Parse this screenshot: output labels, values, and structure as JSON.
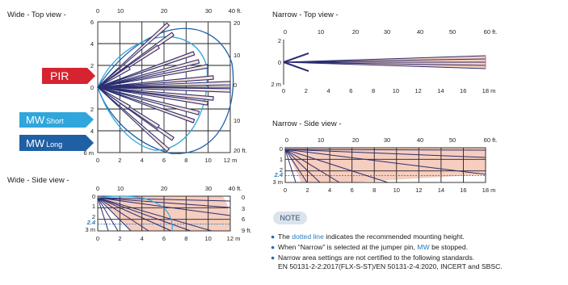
{
  "titles": {
    "wide_top": "Wide - Top view -",
    "wide_side": "Wide - Side view -",
    "narrow_top": "Narrow - Top view -",
    "narrow_side": "Narrow - Side view -"
  },
  "labels": {
    "pir": "PIR",
    "mw_short_prefix": "MW",
    "mw_short_suffix": "Short",
    "mw_long_prefix": "MW",
    "mw_long_suffix": "Long"
  },
  "colors": {
    "pir_red": "#d62330",
    "mw_short_blue": "#2fa6dc",
    "mw_long_blue": "#1f5fa5",
    "beam_navy": "#2b2e70",
    "beam_fill": "#f6cdbe",
    "dotted_blue": "#2a7bc0"
  },
  "wide_top": {
    "ft_ticks": [
      "0",
      "10",
      "20",
      "30",
      "40 ft."
    ],
    "left_ticks": [
      "6",
      "4",
      "2",
      "0",
      "2",
      "4",
      "6 m"
    ],
    "right_ticks": [
      "20",
      "10",
      "0",
      "10",
      "20 ft."
    ],
    "m_ticks": [
      "0",
      "2",
      "4",
      "6",
      "8",
      "10",
      "12 m"
    ]
  },
  "wide_side": {
    "ft_ticks": [
      "0",
      "10",
      "20",
      "30",
      "40 ft."
    ],
    "left_ticks": [
      "0",
      "1",
      "2",
      "2.4",
      "3 m"
    ],
    "right_ticks": [
      "0",
      "3",
      "6",
      "9 ft."
    ],
    "m_ticks": [
      "0",
      "2",
      "4",
      "6",
      "8",
      "10",
      "12 m"
    ]
  },
  "narrow_top": {
    "ft_ticks": [
      "0",
      "10",
      "20",
      "30",
      "40",
      "50",
      "60 ft."
    ],
    "left_ticks": [
      "2",
      "0",
      "2 m"
    ],
    "m_ticks": [
      "0",
      "2",
      "4",
      "6",
      "8",
      "10",
      "12",
      "14",
      "16",
      "18 m"
    ]
  },
  "narrow_side": {
    "ft_ticks": [
      "0",
      "10",
      "20",
      "30",
      "40",
      "50",
      "60 ft."
    ],
    "left_ticks": [
      "0",
      "1",
      "2",
      "2.4",
      "3 m"
    ],
    "m_ticks": [
      "0",
      "2",
      "4",
      "6",
      "8",
      "10",
      "12",
      "14",
      "16",
      "18 m"
    ]
  },
  "note": {
    "badge": "NOTE",
    "item1_pre": "The ",
    "item1_link": "dotted line",
    "item1_post": " indicates the recommended mounting height.",
    "item2_pre": "When “Narrow” is selected at the jumper pin, ",
    "item2_link": "MW",
    "item2_post": " be stopped.",
    "item3_line1": "Narrow area settings are not certified to the following standards.",
    "item3_line2": "EN 50131-2-2:2017(FLX-S-ST)/EN 50131-2-4:2020, INCERT and SBSC."
  }
}
